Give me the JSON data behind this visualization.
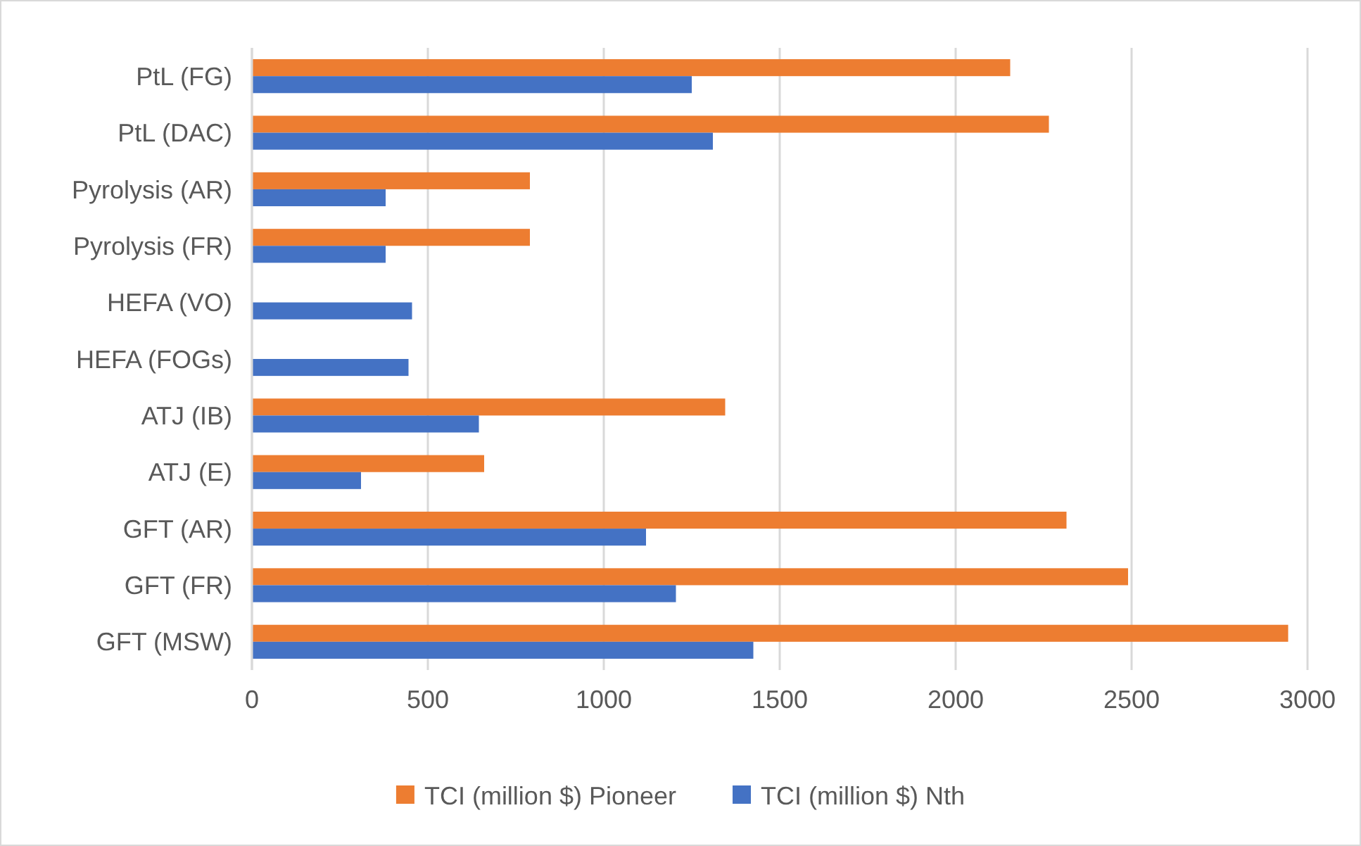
{
  "chart_data": {
    "type": "bar",
    "orientation": "horizontal",
    "categories": [
      "PtL (FG)",
      "PtL (DAC)",
      "Pyrolysis (AR)",
      "Pyrolysis (FR)",
      "HEFA (VO)",
      "HEFA (FOGs)",
      "ATJ (IB)",
      "ATJ (E)",
      "GFT (AR)",
      "GFT (FR)",
      "GFT (MSW)"
    ],
    "series": [
      {
        "name": "TCI (million $)  Pioneer",
        "color": "#ed7d31",
        "values": [
          2155,
          2265,
          790,
          790,
          null,
          null,
          1345,
          660,
          2315,
          2490,
          2945
        ]
      },
      {
        "name": "TCI (million $)  Nth",
        "color": "#4472c4",
        "values": [
          1250,
          1310,
          380,
          380,
          455,
          445,
          645,
          310,
          1120,
          1205,
          1425
        ]
      }
    ],
    "xlim": [
      0,
      3000
    ],
    "xticks": [
      0,
      500,
      1000,
      1500,
      2000,
      2500,
      3000
    ],
    "grid": "x",
    "legend": "bottom"
  }
}
